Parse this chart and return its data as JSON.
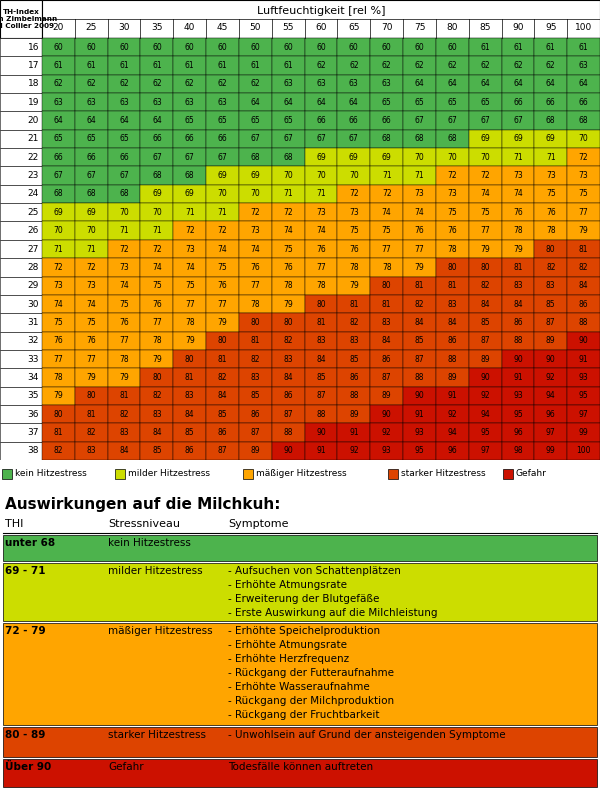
{
  "humidity_cols": [
    20,
    25,
    30,
    35,
    40,
    45,
    50,
    55,
    60,
    65,
    70,
    75,
    80,
    85,
    90,
    95,
    100
  ],
  "temp_rows": [
    16,
    17,
    18,
    19,
    20,
    21,
    22,
    23,
    24,
    25,
    26,
    27,
    28,
    29,
    30,
    31,
    32,
    33,
    34,
    35,
    36,
    37,
    38
  ],
  "table_data": [
    [
      60,
      60,
      60,
      60,
      60,
      60,
      60,
      60,
      60,
      60,
      60,
      60,
      60,
      61,
      61,
      61,
      61
    ],
    [
      61,
      61,
      61,
      61,
      61,
      61,
      61,
      61,
      62,
      62,
      62,
      62,
      62,
      62,
      62,
      62,
      63
    ],
    [
      62,
      62,
      62,
      62,
      62,
      62,
      62,
      63,
      63,
      63,
      63,
      64,
      64,
      64,
      64,
      64,
      64
    ],
    [
      63,
      63,
      63,
      63,
      63,
      63,
      64,
      64,
      64,
      64,
      65,
      65,
      65,
      65,
      66,
      66,
      66
    ],
    [
      64,
      64,
      64,
      64,
      65,
      65,
      65,
      65,
      66,
      66,
      66,
      67,
      67,
      67,
      67,
      68,
      68
    ],
    [
      65,
      65,
      65,
      66,
      66,
      66,
      67,
      67,
      67,
      67,
      68,
      68,
      68,
      69,
      69,
      69,
      70
    ],
    [
      66,
      66,
      66,
      67,
      67,
      67,
      68,
      68,
      69,
      69,
      69,
      70,
      70,
      70,
      71,
      71,
      72
    ],
    [
      67,
      67,
      67,
      68,
      68,
      69,
      69,
      70,
      70,
      70,
      71,
      71,
      72,
      72,
      73,
      73,
      73
    ],
    [
      68,
      68,
      68,
      69,
      69,
      70,
      70,
      71,
      71,
      72,
      72,
      73,
      73,
      74,
      74,
      75,
      75
    ],
    [
      69,
      69,
      70,
      70,
      71,
      71,
      72,
      72,
      73,
      73,
      74,
      74,
      75,
      75,
      76,
      76,
      77
    ],
    [
      70,
      70,
      71,
      71,
      72,
      72,
      73,
      74,
      74,
      75,
      75,
      76,
      76,
      77,
      78,
      78,
      79
    ],
    [
      71,
      71,
      72,
      72,
      73,
      74,
      74,
      75,
      76,
      76,
      77,
      77,
      78,
      79,
      79,
      80,
      81
    ],
    [
      72,
      72,
      73,
      74,
      74,
      75,
      76,
      76,
      77,
      78,
      78,
      79,
      80,
      80,
      81,
      82,
      82
    ],
    [
      73,
      73,
      74,
      75,
      75,
      76,
      77,
      78,
      78,
      79,
      80,
      81,
      81,
      82,
      83,
      83,
      84
    ],
    [
      74,
      74,
      75,
      76,
      77,
      77,
      78,
      79,
      80,
      81,
      81,
      82,
      83,
      84,
      84,
      85,
      86
    ],
    [
      75,
      75,
      76,
      77,
      78,
      79,
      80,
      80,
      81,
      82,
      83,
      84,
      84,
      85,
      86,
      87,
      88
    ],
    [
      76,
      76,
      77,
      78,
      79,
      80,
      81,
      82,
      83,
      83,
      84,
      85,
      86,
      87,
      88,
      89,
      90
    ],
    [
      77,
      77,
      78,
      79,
      80,
      81,
      82,
      83,
      84,
      85,
      86,
      87,
      88,
      89,
      90,
      90,
      91
    ],
    [
      78,
      79,
      79,
      80,
      81,
      82,
      83,
      84,
      85,
      86,
      87,
      88,
      89,
      90,
      91,
      92,
      93
    ],
    [
      79,
      80,
      81,
      82,
      83,
      84,
      85,
      86,
      87,
      88,
      89,
      90,
      91,
      92,
      93,
      94,
      95
    ],
    [
      80,
      81,
      82,
      83,
      84,
      85,
      86,
      87,
      88,
      89,
      90,
      91,
      92,
      94,
      95,
      96,
      97
    ],
    [
      81,
      82,
      83,
      84,
      85,
      86,
      87,
      88,
      90,
      91,
      92,
      93,
      94,
      95,
      96,
      97,
      99
    ],
    [
      82,
      83,
      84,
      85,
      86,
      87,
      89,
      90,
      91,
      92,
      93,
      95,
      96,
      97,
      98,
      99,
      100
    ]
  ],
  "legend_items": [
    {
      "label": "kein Hitzestress",
      "color": "#4db34d"
    },
    {
      "label": "milder Hitzestress",
      "color": "#ccdd00"
    },
    {
      "label": "mäßiger Hitzestress",
      "color": "#ffa500"
    },
    {
      "label": "starker Hitzestress",
      "color": "#dd4400"
    },
    {
      "label": "Gefahr",
      "color": "#cc1100"
    }
  ],
  "section_title": "Auswirkungen auf die Milchkuh:",
  "lower_rows": [
    {
      "thi": "unter 68",
      "stress": "kein Hitzestress",
      "symptome": "",
      "color": "#4db34d"
    },
    {
      "thi": "69 - 71",
      "stress": "milder Hitzestress",
      "symptome": "- Aufsuchen von Schattenplätzen\n- Erhöhte Atmungsrate\n- Erweiterung der Blutgefäße\n- Erste Auswirkung auf die Milchleistung",
      "color": "#ccdd00"
    },
    {
      "thi": "72 - 79",
      "stress": "mäßiger Hitzestress",
      "symptome": "- Erhöhte Speichelproduktion\n- Erhöhte Atmungsrate\n- Erhöhte Herzfrequenz\n- Rückgang der Futteraufnahme\n- Erhöhte Wasseraufnahme\n- Rückgang der Milchproduktion\n- Rückgang der Fruchtbarkeit",
      "color": "#ffa500"
    },
    {
      "thi": "80 - 89",
      "stress": "starker Hitzestress",
      "symptome": "- Unwohlsein auf Grund der ansteigenden Symptome",
      "color": "#dd4400"
    },
    {
      "thi": "Über 90",
      "stress": "Gefahr",
      "symptome": "Todesfälle können auftreten",
      "color": "#cc1100"
    }
  ]
}
